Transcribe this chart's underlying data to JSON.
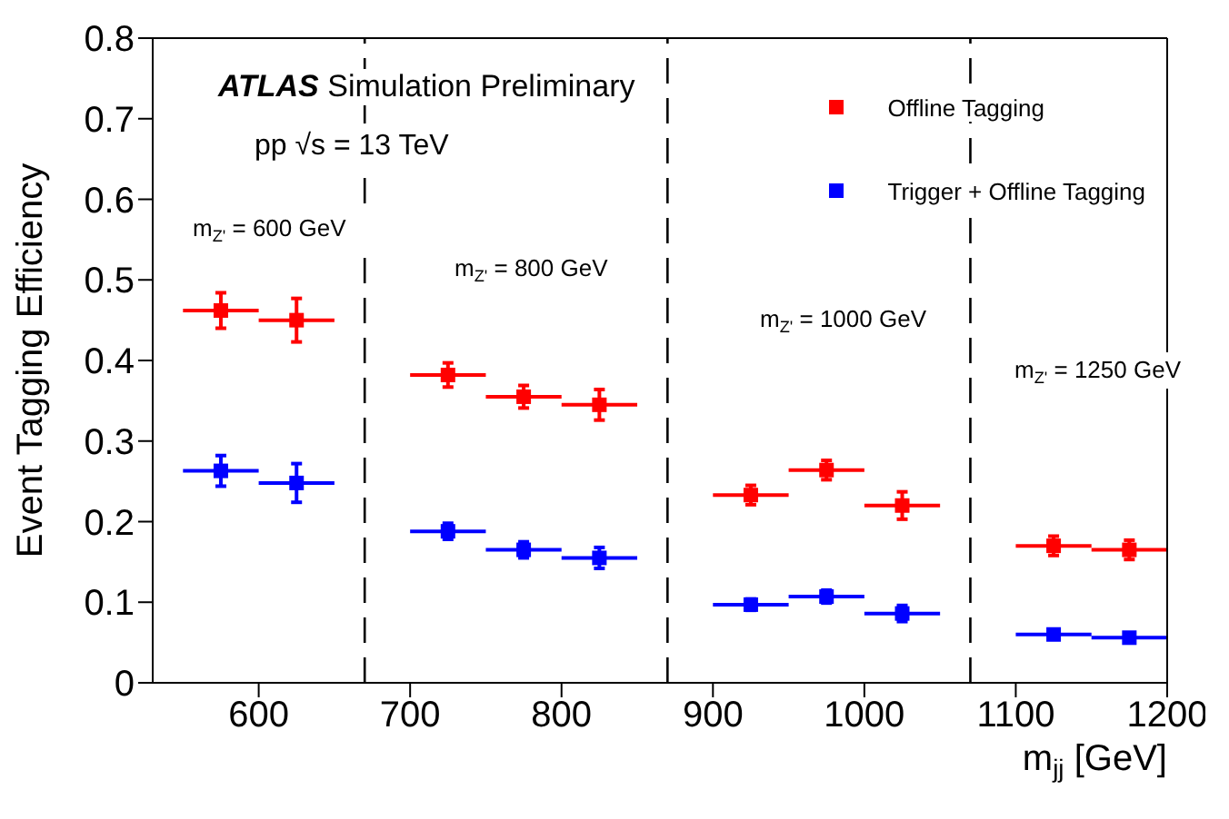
{
  "chart_data": {
    "type": "scatter",
    "title": "ATLAS Simulation Preliminary",
    "subtitle": "pp √s = 13 TeV",
    "xlabel": "m$_{jj}$ [GeV]",
    "ylabel": "Event Tagging Efficiency",
    "x": [
      575,
      625,
      725,
      775,
      825,
      925,
      975,
      1025,
      1125,
      1175
    ],
    "series": [
      {
        "name": "Offline Tagging",
        "color": "#ff0000",
        "values": [
          0.462,
          0.45,
          0.382,
          0.355,
          0.345,
          0.233,
          0.264,
          0.22,
          0.17,
          0.165
        ],
        "errors": [
          0.022,
          0.027,
          0.015,
          0.014,
          0.019,
          0.012,
          0.012,
          0.017,
          0.012,
          0.012
        ],
        "xerrors": [
          25,
          25,
          25,
          25,
          25,
          25,
          25,
          25,
          25,
          25
        ]
      },
      {
        "name": "Trigger + Offline Tagging",
        "color": "#0000ff",
        "values": [
          0.263,
          0.248,
          0.188,
          0.165,
          0.155,
          0.097,
          0.107,
          0.086,
          0.06,
          0.056
        ],
        "errors": [
          0.019,
          0.024,
          0.01,
          0.01,
          0.013,
          0.007,
          0.008,
          0.01,
          0.006,
          0.006
        ],
        "xerrors": [
          25,
          25,
          25,
          25,
          25,
          25,
          25,
          25,
          25,
          25
        ]
      }
    ],
    "xlim": [
      530,
      1200
    ],
    "xticks": [
      600,
      700,
      800,
      900,
      1000,
      1100,
      1200
    ],
    "ylim": [
      0,
      0.8
    ],
    "yticks": [
      0,
      0.1,
      0.2,
      0.3,
      0.4,
      0.5,
      0.6,
      0.7,
      0.8
    ],
    "ref_lines": [
      {
        "axis": "x",
        "value": 670,
        "color": "#000000",
        "line_style": "dashed"
      },
      {
        "axis": "x",
        "value": 870,
        "color": "#000000",
        "line_style": "dashed"
      },
      {
        "axis": "x",
        "value": 1070,
        "color": "#000000",
        "line_style": "dashed"
      }
    ],
    "annotations": [
      "m$_{Z'}$ = 600 GeV",
      "m$_{Z'}$ = 800 GeV",
      "m$_{Z'}$ = 1000 GeV",
      "m$_{Z'}$ = 1250 GeV"
    ],
    "marker": "square",
    "grid": false,
    "legend": "top right"
  }
}
